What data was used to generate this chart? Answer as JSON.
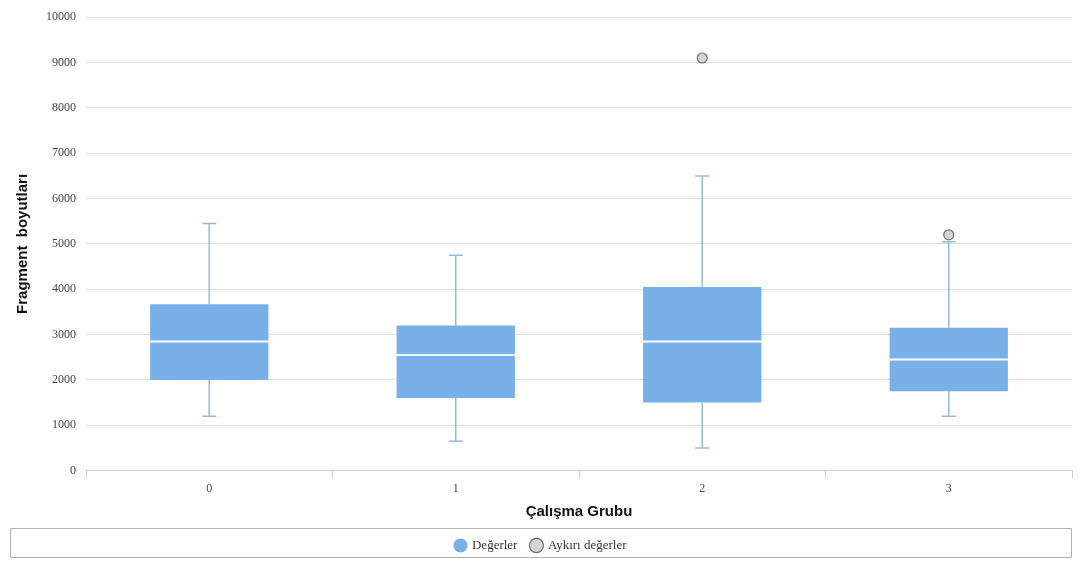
{
  "chart_data": {
    "type": "box",
    "xlabel": "Çalışma Grubu",
    "ylabel": "Fragment  boyutları",
    "categories": [
      "0",
      "1",
      "2",
      "3"
    ],
    "series": [
      {
        "name": "Değerler",
        "color": "#7ab0e8",
        "boxes": [
          {
            "low": 1200,
            "q1": 2000,
            "median": 2850,
            "q3": 3670,
            "high": 5450
          },
          {
            "low": 650,
            "q1": 1600,
            "median": 2550,
            "q3": 3200,
            "high": 4750
          },
          {
            "low": 500,
            "q1": 1500,
            "median": 2850,
            "q3": 4050,
            "high": 6500
          },
          {
            "low": 1200,
            "q1": 1750,
            "median": 2450,
            "q3": 3150,
            "high": 5050
          }
        ]
      },
      {
        "name": "Aykırı değerler",
        "type": "scatter",
        "color": "#d4d4d4",
        "x": [
          "2",
          "3"
        ],
        "values": [
          9100,
          5200
        ]
      }
    ],
    "ylim": [
      0,
      10000
    ],
    "yticks": [
      0,
      1000,
      2000,
      3000,
      4000,
      5000,
      6000,
      7000,
      8000,
      9000,
      10000
    ],
    "grid": "y",
    "legend": "bottom",
    "marker": "circle"
  }
}
